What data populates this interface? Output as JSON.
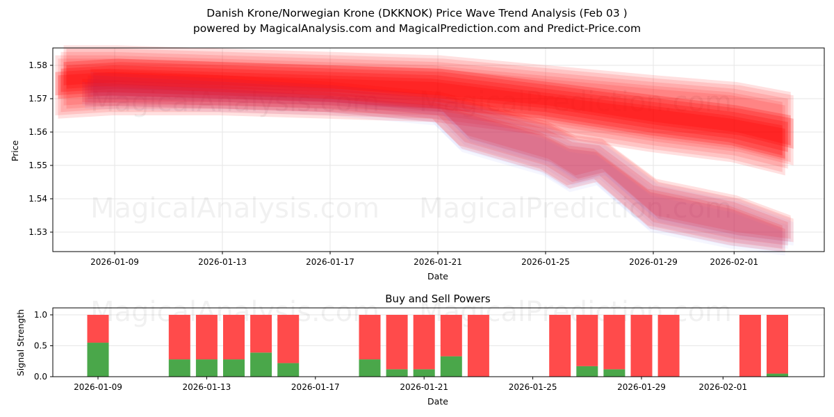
{
  "header": {
    "title": "Danish Krone/Norwegian Krone (DKKNOK) Price Wave Trend Analysis (Feb 03 )",
    "subtitle": "powered by MagicalAnalysis.com and MagicalPrediction.com and Predict-Price.com"
  },
  "watermarks": [
    "MagicalAnalysis.com",
    "MagicalPrediction.com"
  ],
  "colors": {
    "band_red": "#ff0000",
    "band_blue": "#4d6bff",
    "buy": "#4aa74a",
    "sell": "#ff4b4b",
    "grid": "#e6e6e6"
  },
  "chart_data": [
    {
      "type": "area",
      "title": "",
      "xlabel": "Date",
      "ylabel": "Price",
      "ylim": [
        1.5242,
        1.5853
      ],
      "yticks": [
        "1.53",
        "1.54",
        "1.55",
        "1.56",
        "1.57",
        "1.58"
      ],
      "xticks": [
        "2026-01-09",
        "2026-01-13",
        "2026-01-17",
        "2026-01-21",
        "2026-01-25",
        "2026-01-29",
        "2026-02-01"
      ],
      "grid": true,
      "description": "Overlapping semi-transparent price wave bands; upper trend band flattening downward, lower band dropping sharply after Jan 22",
      "series": [
        {
          "name": "upper-wave-band",
          "x": [
            "2026-01-07",
            "2026-01-09",
            "2026-01-13",
            "2026-01-17",
            "2026-01-21",
            "2026-01-25",
            "2026-01-29",
            "2026-02-01",
            "2026-02-03"
          ],
          "upper": [
            1.584,
            1.584,
            1.583,
            1.582,
            1.581,
            1.578,
            1.575,
            1.573,
            1.57
          ],
          "lower": [
            1.566,
            1.567,
            1.567,
            1.566,
            1.565,
            1.561,
            1.556,
            1.553,
            1.549
          ]
        },
        {
          "name": "core-wave-band",
          "x": [
            "2026-01-07",
            "2026-01-09",
            "2026-01-13",
            "2026-01-17",
            "2026-01-21",
            "2026-01-25",
            "2026-01-29",
            "2026-02-01",
            "2026-02-03"
          ],
          "upper": [
            1.579,
            1.58,
            1.579,
            1.578,
            1.577,
            1.573,
            1.569,
            1.566,
            1.563
          ],
          "lower": [
            1.572,
            1.573,
            1.572,
            1.571,
            1.569,
            1.566,
            1.561,
            1.558,
            1.554
          ]
        },
        {
          "name": "lower-wave-band",
          "x": [
            "2026-01-08",
            "2026-01-13",
            "2026-01-17",
            "2026-01-21",
            "2026-01-22",
            "2026-01-25",
            "2026-01-26",
            "2026-01-27",
            "2026-01-29",
            "2026-02-01",
            "2026-02-03"
          ],
          "upper": [
            1.577,
            1.575,
            1.573,
            1.57,
            1.568,
            1.561,
            1.557,
            1.556,
            1.544,
            1.539,
            1.533
          ],
          "lower": [
            1.57,
            1.569,
            1.568,
            1.565,
            1.557,
            1.55,
            1.545,
            1.547,
            1.533,
            1.528,
            1.526
          ]
        }
      ]
    },
    {
      "type": "bar",
      "title": "Buy and Sell Powers",
      "xlabel": "Date",
      "ylabel": "Signal Strength",
      "ylim": [
        0,
        1.05
      ],
      "yticks": [
        "0.0",
        "0.5",
        "1.0"
      ],
      "xticks": [
        "2026-01-09",
        "2026-01-13",
        "2026-01-17",
        "2026-01-21",
        "2026-01-25",
        "2026-01-29",
        "2026-02-01"
      ],
      "grid": true,
      "stacked": true,
      "categories": [
        "2026-01-09",
        "2026-01-12",
        "2026-01-13",
        "2026-01-14",
        "2026-01-15",
        "2026-01-16",
        "2026-01-19",
        "2026-01-20",
        "2026-01-21",
        "2026-01-22",
        "2026-01-23",
        "2026-01-26",
        "2026-01-27",
        "2026-01-28",
        "2026-01-29",
        "2026-01-30",
        "2026-02-02",
        "2026-02-03"
      ],
      "series": [
        {
          "name": "Buy",
          "color": "#4aa74a",
          "values": [
            0.55,
            0.28,
            0.28,
            0.28,
            0.39,
            0.22,
            0.28,
            0.12,
            0.12,
            0.33,
            0.0,
            0.0,
            0.17,
            0.12,
            0.0,
            0.0,
            0.0,
            0.05
          ]
        },
        {
          "name": "Sell",
          "color": "#ff4b4b",
          "values": [
            0.45,
            0.72,
            0.72,
            0.72,
            0.61,
            0.78,
            0.72,
            0.88,
            0.88,
            0.67,
            1.0,
            1.0,
            0.83,
            0.88,
            1.0,
            1.0,
            1.0,
            0.95
          ]
        }
      ]
    }
  ]
}
